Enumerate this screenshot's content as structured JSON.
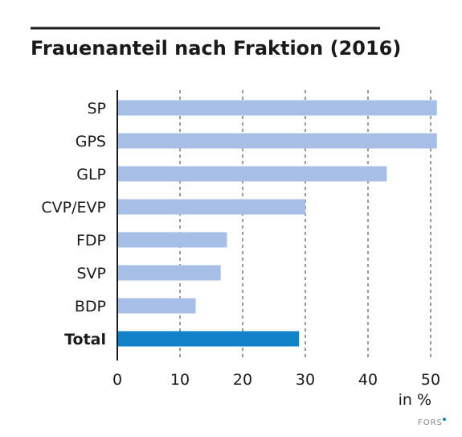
{
  "chart_data": {
    "type": "bar",
    "orientation": "horizontal",
    "title": "Frauenanteil nach Fraktion (2016)",
    "categories": [
      "SP",
      "GPS",
      "GLP",
      "CVP/EVP",
      "FDP",
      "SVP",
      "BDP",
      "Total"
    ],
    "values": [
      51,
      51,
      43,
      30,
      17.5,
      16.5,
      12.5,
      29
    ],
    "highlight_category": "Total",
    "xlim": [
      0,
      51
    ],
    "xticks": [
      0,
      10,
      20,
      30,
      40,
      50
    ],
    "xlabel": "in %",
    "grid": "vertical-dashed",
    "colors": {
      "bar": "#a7bfe6",
      "highlight": "#1181c8"
    }
  },
  "brand": {
    "logo_text": "FORS",
    "logo_mark_color": "#1181c8"
  }
}
